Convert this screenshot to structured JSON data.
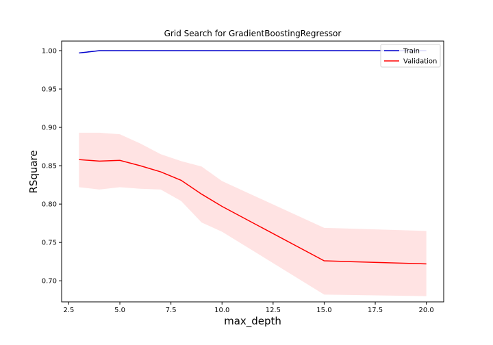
{
  "chart_data": {
    "type": "line",
    "title": "Grid Search for GradientBoostingRegressor",
    "xlabel": "max_depth",
    "ylabel": "RSquare",
    "xlim": [
      2.15,
      20.85
    ],
    "ylim": [
      0.6725,
      1.0125
    ],
    "xticks": [
      2.5,
      5.0,
      7.5,
      10.0,
      12.5,
      15.0,
      17.5,
      20.0
    ],
    "xtick_labels": [
      "2.5",
      "5.0",
      "7.5",
      "10.0",
      "12.5",
      "15.0",
      "17.5",
      "20.0"
    ],
    "yticks": [
      0.7,
      0.75,
      0.8,
      0.85,
      0.9,
      0.95,
      1.0
    ],
    "ytick_labels": [
      "0.70",
      "0.75",
      "0.80",
      "0.85",
      "0.90",
      "0.95",
      "1.00"
    ],
    "grid": false,
    "legend": "top-right",
    "x": [
      3,
      4,
      5,
      6,
      7,
      8,
      9,
      10,
      15,
      20
    ],
    "series": [
      {
        "name": "Train",
        "color": "#0000cc",
        "values": [
          0.997,
          1.0,
          1.0,
          1.0,
          1.0,
          1.0,
          1.0,
          1.0,
          1.0,
          1.0
        ]
      },
      {
        "name": "Validation",
        "color": "#ff0000",
        "band_color": "#ffb0b0",
        "values": [
          0.858,
          0.856,
          0.857,
          0.85,
          0.842,
          0.831,
          0.813,
          0.797,
          0.726,
          0.722
        ],
        "upper": [
          0.893,
          0.893,
          0.891,
          0.879,
          0.865,
          0.856,
          0.849,
          0.83,
          0.769,
          0.765
        ],
        "lower": [
          0.822,
          0.819,
          0.822,
          0.82,
          0.819,
          0.804,
          0.776,
          0.764,
          0.682,
          0.68
        ]
      }
    ]
  }
}
